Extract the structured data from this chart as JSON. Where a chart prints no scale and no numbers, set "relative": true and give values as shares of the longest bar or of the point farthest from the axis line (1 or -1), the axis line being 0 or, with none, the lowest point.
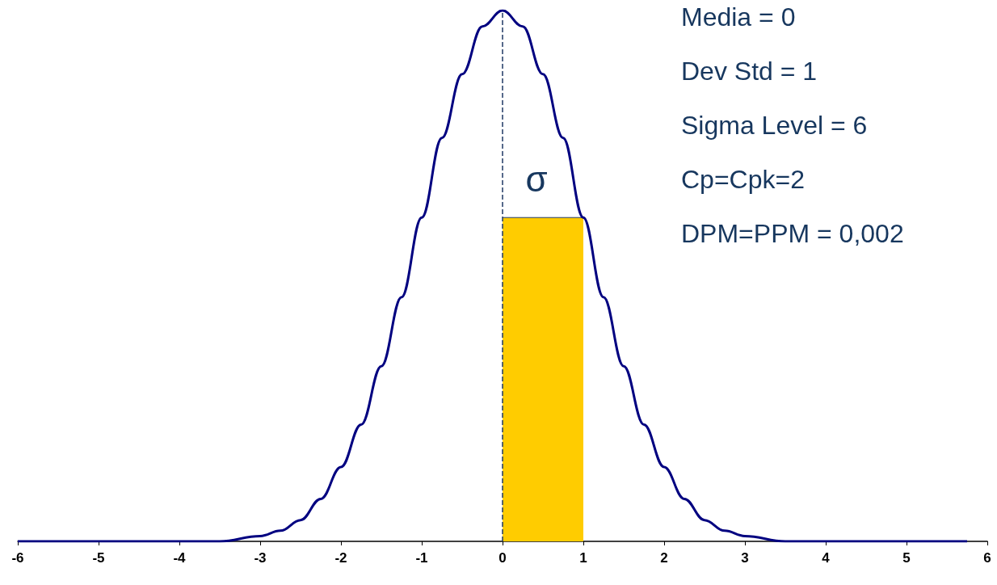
{
  "chart_data": {
    "type": "line",
    "relative": true,
    "marker": "none",
    "grid": false,
    "tick_labels": "x",
    "xlim": [
      -6,
      6
    ],
    "xticks": [
      -6,
      -5,
      -4,
      -3,
      -2,
      -1,
      0,
      1,
      2,
      3,
      4,
      5,
      6
    ],
    "series": [
      {
        "type": "area",
        "color": "#ffcc00",
        "x": [
          0,
          1
        ],
        "values": [
          0.61,
          0.61
        ]
      },
      {
        "color": "#000080",
        "line_style": "solid",
        "x": [
          -6,
          -5,
          -4,
          -3.5,
          -3,
          -2.75,
          -2.5,
          -2.25,
          -2,
          -1.75,
          -1.5,
          -1.25,
          -1,
          -0.75,
          -0.5,
          -0.25,
          0,
          0.25,
          0.5,
          0.75,
          1,
          1.25,
          1.5,
          1.75,
          2,
          2.25,
          2.5,
          2.75,
          3,
          3.5,
          4,
          5,
          5.75
        ],
        "values": [
          0,
          0,
          0,
          0,
          0.01,
          0.02,
          0.04,
          0.08,
          0.14,
          0.22,
          0.33,
          0.46,
          0.61,
          0.76,
          0.88,
          0.97,
          1,
          0.97,
          0.88,
          0.76,
          0.61,
          0.46,
          0.33,
          0.22,
          0.14,
          0.08,
          0.04,
          0.02,
          0.01,
          0,
          0,
          0,
          0
        ]
      }
    ],
    "ref_lines": [
      {
        "axis": "x",
        "value": 0,
        "color": "#1f3864",
        "line_style": "dashed"
      }
    ],
    "annotations": [
      "Media = 0",
      "Dev Std = 1",
      "Sigma Level = 6",
      "Cp=Cpk=2",
      "DPM=PPM = 0,002",
      "σ"
    ]
  }
}
